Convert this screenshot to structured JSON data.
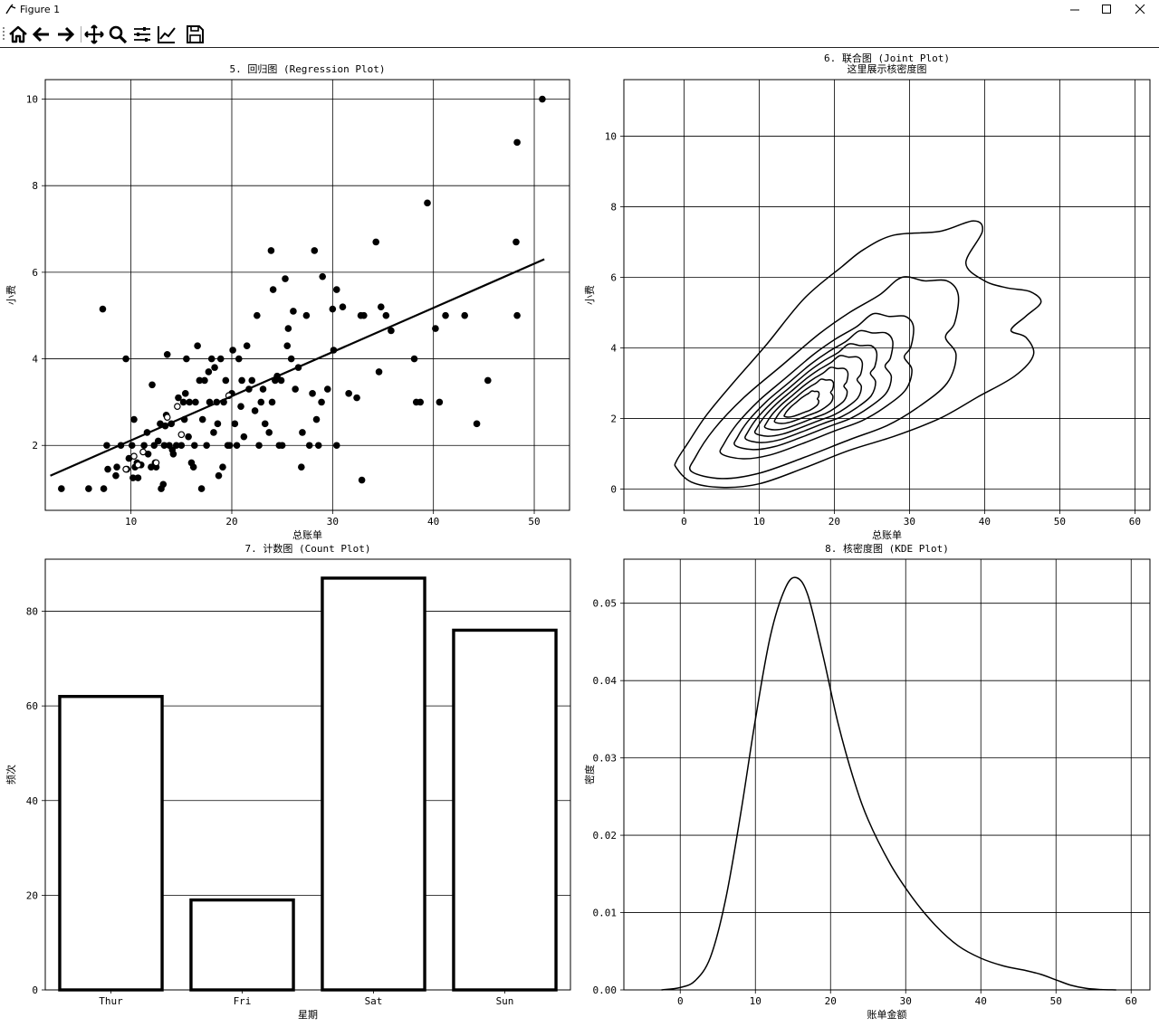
{
  "window": {
    "title": "Figure 1"
  },
  "toolbar": {
    "icons": [
      "home-icon",
      "back-arrow-icon",
      "forward-arrow-icon",
      "move-icon",
      "zoom-icon",
      "configure-subplots-icon",
      "edit-curves-icon",
      "save-icon"
    ]
  },
  "chart_data": [
    {
      "type": "scatter",
      "title": "5. 回归图 (Regression Plot)",
      "xlabel": "总账单",
      "ylabel": "小费",
      "xlim": [
        1.5,
        53.5
      ],
      "ylim": [
        0.5,
        10.45
      ],
      "xticks": [
        10,
        20,
        30,
        40,
        50
      ],
      "yticks": [
        2,
        4,
        6,
        8,
        10
      ],
      "grid": true,
      "points": [
        [
          3.1,
          1
        ],
        [
          5.8,
          1
        ],
        [
          7.3,
          1
        ],
        [
          7.2,
          5.15
        ],
        [
          7.6,
          2
        ],
        [
          7.7,
          1.45
        ],
        [
          8.5,
          1.3
        ],
        [
          8.6,
          1.5
        ],
        [
          9,
          2
        ],
        [
          9.5,
          4
        ],
        [
          9.6,
          1.45
        ],
        [
          9.8,
          1.7
        ],
        [
          10.1,
          2
        ],
        [
          10.2,
          1.25
        ],
        [
          10.3,
          2.6
        ],
        [
          10.4,
          1.5
        ],
        [
          10.6,
          1.6
        ],
        [
          10.7,
          1.25
        ],
        [
          11,
          1.55
        ],
        [
          11.3,
          2
        ],
        [
          11.6,
          2.3
        ],
        [
          11.7,
          1.8
        ],
        [
          12,
          1.5
        ],
        [
          12.1,
          3.4
        ],
        [
          12.3,
          2
        ],
        [
          12.4,
          1.6
        ],
        [
          12.5,
          1.5
        ],
        [
          12.7,
          2.1
        ],
        [
          12.9,
          2.5
        ],
        [
          13,
          1
        ],
        [
          13.2,
          1.1
        ],
        [
          13.3,
          2
        ],
        [
          13.4,
          2.45
        ],
        [
          13.5,
          2.7
        ],
        [
          13.6,
          4.1
        ],
        [
          13.8,
          2
        ],
        [
          14,
          2.5
        ],
        [
          14.1,
          1.9
        ],
        [
          14.2,
          1.8
        ],
        [
          14.5,
          2
        ],
        [
          14.7,
          3.1
        ],
        [
          15,
          2
        ],
        [
          15.2,
          3
        ],
        [
          15.3,
          2.6
        ],
        [
          15.4,
          3.2
        ],
        [
          15.5,
          4
        ],
        [
          15.7,
          2.2
        ],
        [
          15.8,
          3
        ],
        [
          16,
          1.6
        ],
        [
          16.2,
          1.5
        ],
        [
          16.3,
          2
        ],
        [
          16.4,
          3
        ],
        [
          16.6,
          4.3
        ],
        [
          16.8,
          3.5
        ],
        [
          17,
          1
        ],
        [
          17.1,
          2.6
        ],
        [
          17.3,
          3.5
        ],
        [
          17.5,
          2
        ],
        [
          17.7,
          3.7
        ],
        [
          17.8,
          3
        ],
        [
          18,
          4
        ],
        [
          18.2,
          2.3
        ],
        [
          18.3,
          3.8
        ],
        [
          18.5,
          3
        ],
        [
          18.6,
          2.5
        ],
        [
          18.7,
          1.3
        ],
        [
          18.9,
          4
        ],
        [
          19.1,
          1.5
        ],
        [
          19.2,
          3
        ],
        [
          19.4,
          3.5
        ],
        [
          19.6,
          2
        ],
        [
          19.8,
          2
        ],
        [
          20,
          3.2
        ],
        [
          20.1,
          4.2
        ],
        [
          20.3,
          2.5
        ],
        [
          20.5,
          2
        ],
        [
          20.7,
          4
        ],
        [
          20.9,
          2.9
        ],
        [
          21,
          3.5
        ],
        [
          21.2,
          2.2
        ],
        [
          21.5,
          4.3
        ],
        [
          21.7,
          3.3
        ],
        [
          22,
          3.5
        ],
        [
          22.3,
          2.8
        ],
        [
          22.5,
          5
        ],
        [
          22.7,
          2
        ],
        [
          22.9,
          3
        ],
        [
          23.1,
          3.3
        ],
        [
          23.3,
          2.5
        ],
        [
          23.7,
          2.3
        ],
        [
          23.9,
          6.5
        ],
        [
          24,
          3
        ],
        [
          24.1,
          5.6
        ],
        [
          24.3,
          3.5
        ],
        [
          24.5,
          3.6
        ],
        [
          24.7,
          2
        ],
        [
          24.9,
          3.5
        ],
        [
          25,
          2
        ],
        [
          25.3,
          5.85
        ],
        [
          25.5,
          4.3
        ],
        [
          25.6,
          4.7
        ],
        [
          25.9,
          4
        ],
        [
          26.1,
          5.1
        ],
        [
          26.3,
          3.3
        ],
        [
          26.6,
          3.8
        ],
        [
          26.9,
          1.5
        ],
        [
          27,
          2.3
        ],
        [
          27.4,
          5
        ],
        [
          27.7,
          2
        ],
        [
          28,
          3.2
        ],
        [
          28.2,
          6.5
        ],
        [
          28.4,
          2.6
        ],
        [
          28.6,
          2
        ],
        [
          28.9,
          3
        ],
        [
          29,
          5.9
        ],
        [
          29.5,
          3.3
        ],
        [
          30,
          5.15
        ],
        [
          30.1,
          4.2
        ],
        [
          30.4,
          5.6
        ],
        [
          30.4,
          2
        ],
        [
          31,
          5.2
        ],
        [
          31.6,
          3.2
        ],
        [
          32.4,
          3.1
        ],
        [
          32.8,
          5
        ],
        [
          32.9,
          1.2
        ],
        [
          33.1,
          5
        ],
        [
          34.3,
          6.7
        ],
        [
          34.6,
          3.7
        ],
        [
          34.8,
          5.2
        ],
        [
          35.3,
          5
        ],
        [
          35.8,
          4.65
        ],
        [
          38.1,
          4
        ],
        [
          38.3,
          3
        ],
        [
          38.7,
          3
        ],
        [
          39.4,
          7.6
        ],
        [
          40.2,
          4.7
        ],
        [
          40.6,
          3
        ],
        [
          41.2,
          5
        ],
        [
          43.1,
          5
        ],
        [
          44.3,
          2.5
        ],
        [
          45.4,
          3.5
        ],
        [
          48.3,
          9
        ],
        [
          48.2,
          6.7
        ],
        [
          48.3,
          5
        ],
        [
          50.8,
          10
        ]
      ],
      "hollow_points": [
        [
          9.5,
          1.45
        ],
        [
          10.3,
          1.75
        ],
        [
          10.7,
          1.55
        ],
        [
          11.2,
          1.85
        ],
        [
          12.5,
          1.6
        ],
        [
          13.6,
          2.65
        ],
        [
          14.6,
          2.9
        ],
        [
          15,
          2.25
        ],
        [
          19.7,
          3.15
        ]
      ],
      "regression_line": {
        "x": [
          2,
          51
        ],
        "y": [
          1.3,
          6.3
        ]
      }
    },
    {
      "type": "contour",
      "title": "6. 联合图 (Joint Plot)",
      "subtitle": "这里展示核密度图",
      "xlabel": "总账单",
      "ylabel": "小费",
      "xlim": [
        -8,
        62
      ],
      "ylim": [
        -0.6,
        11.6
      ],
      "xticks": [
        0,
        10,
        20,
        30,
        40,
        50,
        60
      ],
      "yticks": [
        0,
        2,
        4,
        6,
        8,
        10
      ],
      "grid": true,
      "kde_center": [
        15.2,
        2.3
      ],
      "levels": [
        {
          "scale": 1,
          "lobes": true
        },
        {
          "scale": 1,
          "lobes": false
        },
        {
          "scale": 0.72,
          "lobes": false
        },
        {
          "scale": 0.59,
          "lobes": false
        },
        {
          "scale": 0.49,
          "lobes": false
        },
        {
          "scale": 0.4,
          "lobes": false
        },
        {
          "scale": 0.31,
          "lobes": false
        },
        {
          "scale": 0.22,
          "lobes": false
        },
        {
          "scale": 0.13,
          "lobes": false
        }
      ]
    },
    {
      "type": "bar",
      "title": "7. 计数图 (Count Plot)",
      "xlabel": "星期",
      "ylabel": "频次",
      "categories": [
        "Thur",
        "Fri",
        "Sat",
        "Sun"
      ],
      "values": [
        62,
        19,
        87,
        76
      ],
      "ylim": [
        0,
        91
      ],
      "yticks": [
        0,
        20,
        40,
        60,
        80
      ],
      "grid": true
    },
    {
      "type": "line",
      "title": "8. 核密度图 (KDE Plot)",
      "xlabel": "账单金额",
      "ylabel": "密度",
      "xlim": [
        -7.5,
        62.5
      ],
      "ylim": [
        0,
        0.0557
      ],
      "xticks": [
        0,
        10,
        20,
        30,
        40,
        50,
        60
      ],
      "yticks": [
        0.0,
        0.01,
        0.02,
        0.03,
        0.04,
        0.05
      ],
      "grid": true,
      "x": [
        -2.5,
        0,
        2,
        4,
        6,
        8,
        10,
        12,
        14,
        15.5,
        17,
        19,
        21,
        23,
        25,
        28,
        31,
        34,
        37,
        40,
        43,
        46,
        48,
        50,
        52,
        54,
        56,
        58
      ],
      "y": [
        0.0,
        0.0003,
        0.0012,
        0.0042,
        0.0115,
        0.0225,
        0.035,
        0.0458,
        0.052,
        0.0533,
        0.051,
        0.0432,
        0.0345,
        0.0275,
        0.022,
        0.0162,
        0.0118,
        0.0083,
        0.0057,
        0.0041,
        0.0031,
        0.0025,
        0.002,
        0.0013,
        0.0006,
        0.0002,
        5e-05,
        0.0
      ]
    }
  ]
}
